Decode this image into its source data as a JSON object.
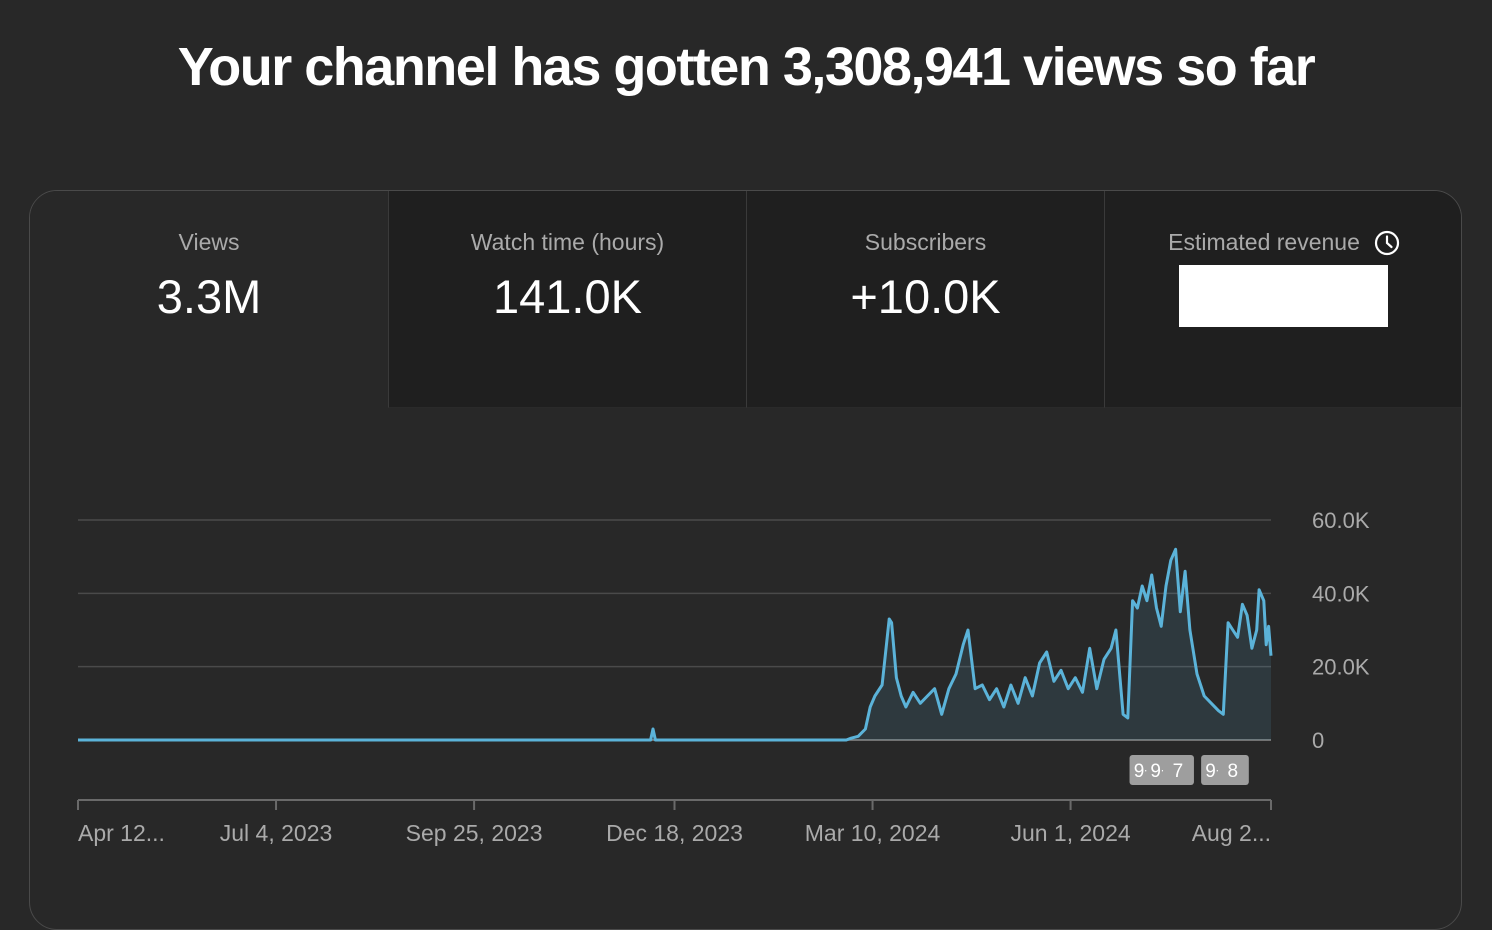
{
  "headline": "Your channel has gotten 3,308,941 views so far",
  "metrics": [
    {
      "label": "Views",
      "value": "3.3M",
      "selected": true
    },
    {
      "label": "Watch time (hours)",
      "value": "141.0K",
      "selected": false
    },
    {
      "label": "Subscribers",
      "value": "+10.0K",
      "selected": false
    },
    {
      "label": "Estimated revenue",
      "value": "",
      "selected": false,
      "icon": "clock-icon"
    }
  ],
  "chart_data": {
    "type": "line",
    "series_color": "#5bb3d9",
    "grid": true,
    "y_ticks": [
      "60.0K",
      "40.0K",
      "20.0K",
      "0"
    ],
    "y_tick_values": [
      60000,
      40000,
      20000,
      0
    ],
    "ylim": [
      0,
      60000
    ],
    "x_tick_labels": [
      "Apr 12...",
      "Jul 4, 2023",
      "Sep 25, 2023",
      "Dec 18, 2023",
      "Mar 10, 2024",
      "Jun 1, 2024",
      "Aug 2..."
    ],
    "x_tick_dates": [
      "2023-04-12",
      "2023-07-04",
      "2023-09-25",
      "2023-12-18",
      "2024-03-10",
      "2024-06-01",
      "2024-08-24"
    ],
    "markers": [
      {
        "label": "9+",
        "date": "2024-07-02"
      },
      {
        "label": "9+",
        "date": "2024-07-09"
      },
      {
        "label": "7",
        "date": "2024-07-16"
      },
      {
        "label": "9+",
        "date": "2024-08-01"
      },
      {
        "label": "8",
        "date": "2024-08-08"
      }
    ],
    "points": [
      [
        "2023-04-12",
        0
      ],
      [
        "2023-07-04",
        0
      ],
      [
        "2023-09-25",
        0
      ],
      [
        "2023-12-08",
        0
      ],
      [
        "2023-12-09",
        3000
      ],
      [
        "2023-12-10",
        0
      ],
      [
        "2024-02-28",
        0
      ],
      [
        "2024-03-01",
        500
      ],
      [
        "2024-03-04",
        1000
      ],
      [
        "2024-03-07",
        3000
      ],
      [
        "2024-03-09",
        9000
      ],
      [
        "2024-03-11",
        12000
      ],
      [
        "2024-03-14",
        15000
      ],
      [
        "2024-03-17",
        33000
      ],
      [
        "2024-03-18",
        32000
      ],
      [
        "2024-03-20",
        17000
      ],
      [
        "2024-03-22",
        12000
      ],
      [
        "2024-03-24",
        9000
      ],
      [
        "2024-03-27",
        13000
      ],
      [
        "2024-03-30",
        10000
      ],
      [
        "2024-04-02",
        12000
      ],
      [
        "2024-04-05",
        14000
      ],
      [
        "2024-04-08",
        7000
      ],
      [
        "2024-04-11",
        14000
      ],
      [
        "2024-04-14",
        18000
      ],
      [
        "2024-04-17",
        26000
      ],
      [
        "2024-04-19",
        30000
      ],
      [
        "2024-04-22",
        14000
      ],
      [
        "2024-04-25",
        15000
      ],
      [
        "2024-04-28",
        11000
      ],
      [
        "2024-05-01",
        14000
      ],
      [
        "2024-05-04",
        9000
      ],
      [
        "2024-05-07",
        15000
      ],
      [
        "2024-05-10",
        10000
      ],
      [
        "2024-05-13",
        17000
      ],
      [
        "2024-05-16",
        12000
      ],
      [
        "2024-05-19",
        21000
      ],
      [
        "2024-05-22",
        24000
      ],
      [
        "2024-05-25",
        16000
      ],
      [
        "2024-05-28",
        19000
      ],
      [
        "2024-05-31",
        14000
      ],
      [
        "2024-06-03",
        17000
      ],
      [
        "2024-06-06",
        13000
      ],
      [
        "2024-06-09",
        25000
      ],
      [
        "2024-06-12",
        14000
      ],
      [
        "2024-06-15",
        22000
      ],
      [
        "2024-06-18",
        25000
      ],
      [
        "2024-06-20",
        30000
      ],
      [
        "2024-06-23",
        7000
      ],
      [
        "2024-06-25",
        6000
      ],
      [
        "2024-06-27",
        38000
      ],
      [
        "2024-06-29",
        36000
      ],
      [
        "2024-07-01",
        42000
      ],
      [
        "2024-07-03",
        38000
      ],
      [
        "2024-07-05",
        45000
      ],
      [
        "2024-07-07",
        36000
      ],
      [
        "2024-07-09",
        31000
      ],
      [
        "2024-07-11",
        42000
      ],
      [
        "2024-07-13",
        49000
      ],
      [
        "2024-07-15",
        52000
      ],
      [
        "2024-07-17",
        35000
      ],
      [
        "2024-07-19",
        46000
      ],
      [
        "2024-07-21",
        30000
      ],
      [
        "2024-07-24",
        18000
      ],
      [
        "2024-07-27",
        12000
      ],
      [
        "2024-07-30",
        10000
      ],
      [
        "2024-08-02",
        8000
      ],
      [
        "2024-08-04",
        7000
      ],
      [
        "2024-08-06",
        32000
      ],
      [
        "2024-08-08",
        30000
      ],
      [
        "2024-08-10",
        28000
      ],
      [
        "2024-08-12",
        37000
      ],
      [
        "2024-08-14",
        34000
      ],
      [
        "2024-08-16",
        25000
      ],
      [
        "2024-08-18",
        30000
      ],
      [
        "2024-08-19",
        41000
      ],
      [
        "2024-08-21",
        38000
      ],
      [
        "2024-08-22",
        26000
      ],
      [
        "2024-08-23",
        31000
      ],
      [
        "2024-08-24",
        23000
      ]
    ]
  }
}
